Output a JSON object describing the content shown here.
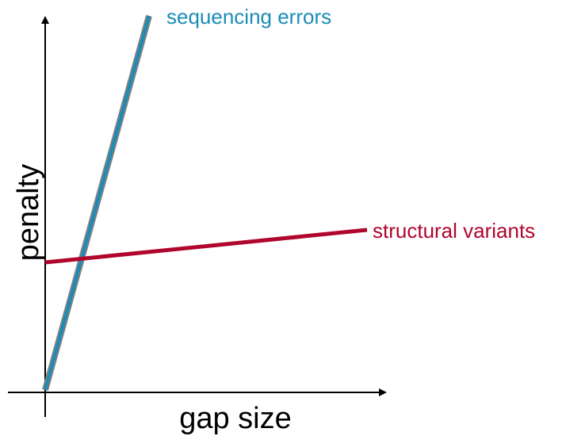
{
  "diagram": {
    "x_axis_label": "gap size",
    "y_axis_label": "penalty",
    "lines": [
      {
        "label": "sequencing errors",
        "color": "#1a8cb8"
      },
      {
        "label": "structural variants",
        "color": "#b0052d"
      }
    ]
  }
}
